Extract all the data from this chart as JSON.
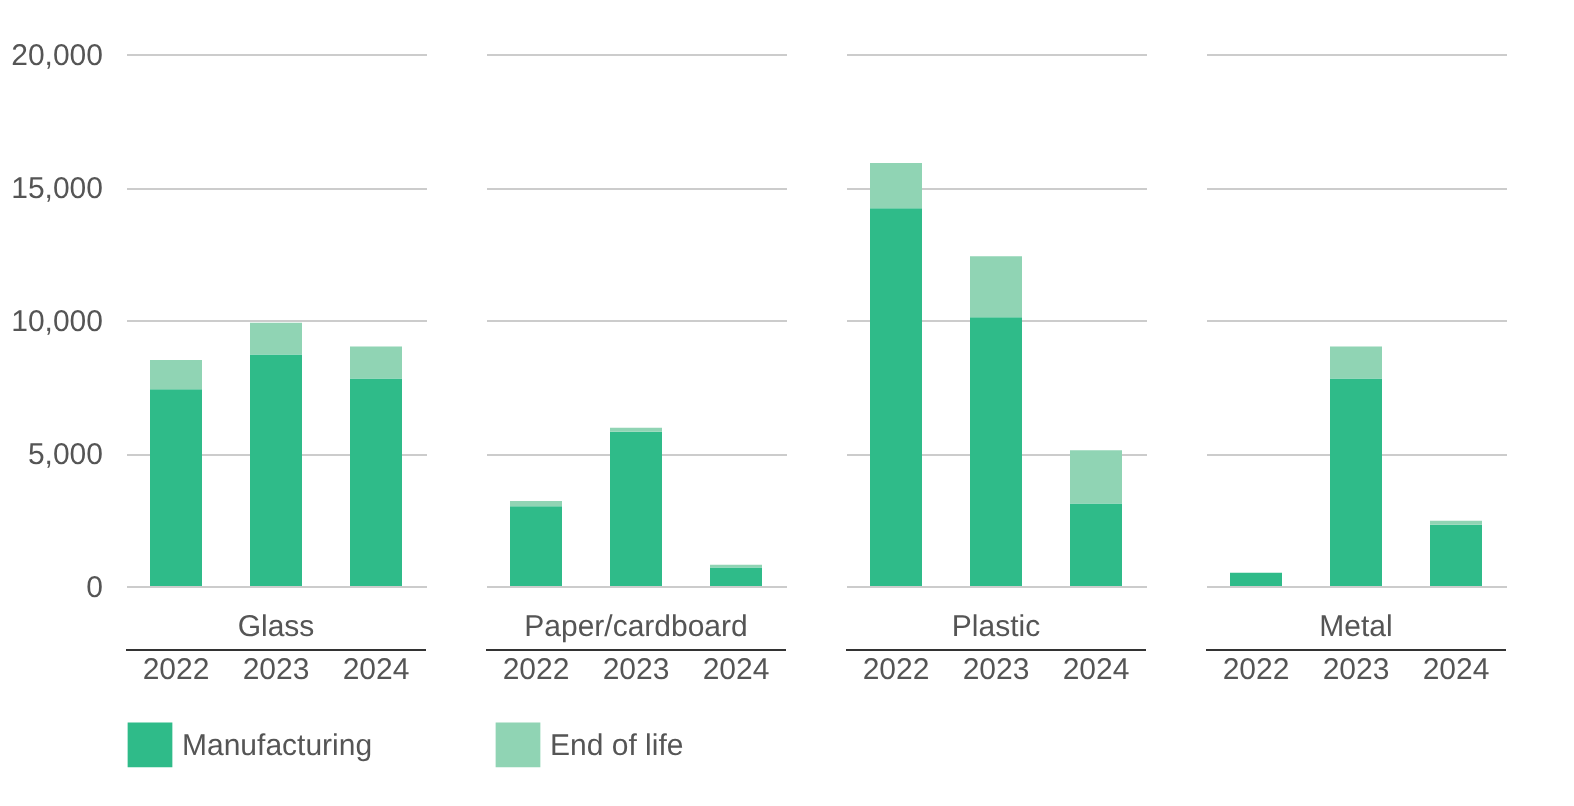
{
  "chart_data": [
    {
      "type": "bar",
      "stacked": true,
      "xlabel": "Glass",
      "categories": [
        "2022",
        "2023",
        "2024"
      ],
      "ylim": [
        0,
        20000
      ],
      "yticks": [
        0,
        {
          "value": 5000,
          "label": "5,000"
        },
        {
          "value": 10000,
          "label": "10,000"
        },
        {
          "value": 15000,
          "label": "15,000"
        },
        {
          "value": 20000,
          "label": "20,000"
        }
      ],
      "grid": "y",
      "legend": "bottom",
      "series": [
        {
          "name": "Manufacturing",
          "color": "#2fbb89",
          "values": [
            7400,
            8700,
            7800
          ]
        },
        {
          "name": "End of life",
          "color": "#90d4b4",
          "values": [
            1100,
            1200,
            1200
          ]
        }
      ]
    },
    {
      "type": "bar",
      "stacked": true,
      "xlabel": "Paper/cardboard",
      "categories": [
        "2022",
        "2023",
        "2024"
      ],
      "ylim": [
        0,
        20000
      ],
      "yticks": [
        0,
        5000,
        10000,
        15000,
        20000
      ],
      "grid": "y",
      "legend": "bottom",
      "tick_labels": "x",
      "series": [
        {
          "name": "Manufacturing",
          "color": "#2fbb89",
          "values": [
            3000,
            5800,
            700
          ]
        },
        {
          "name": "End of life",
          "color": "#90d4b4",
          "values": [
            200,
            150,
            100
          ]
        }
      ]
    },
    {
      "type": "bar",
      "stacked": true,
      "xlabel": "Plastic",
      "categories": [
        "2022",
        "2023",
        "2024"
      ],
      "ylim": [
        0,
        20000
      ],
      "yticks": [
        0,
        5000,
        10000,
        15000,
        20000
      ],
      "grid": "y",
      "legend": "bottom",
      "tick_labels": "x",
      "series": [
        {
          "name": "Manufacturing",
          "color": "#2fbb89",
          "values": [
            14200,
            10100,
            3100
          ]
        },
        {
          "name": "End of life",
          "color": "#90d4b4",
          "values": [
            1700,
            2300,
            2000
          ]
        }
      ]
    },
    {
      "type": "bar",
      "stacked": true,
      "xlabel": "Metal",
      "categories": [
        "2022",
        "2023",
        "2024"
      ],
      "ylim": [
        0,
        20000
      ],
      "yticks": [
        0,
        5000,
        10000,
        15000,
        20000
      ],
      "grid": "y",
      "legend": "bottom",
      "tick_labels": "x",
      "series": [
        {
          "name": "Manufacturing",
          "color": "#2fbb89",
          "values": [
            500,
            7800,
            2300
          ]
        },
        {
          "name": "End of life",
          "color": "#90d4b4",
          "values": [
            0,
            1200,
            150
          ]
        }
      ]
    }
  ]
}
